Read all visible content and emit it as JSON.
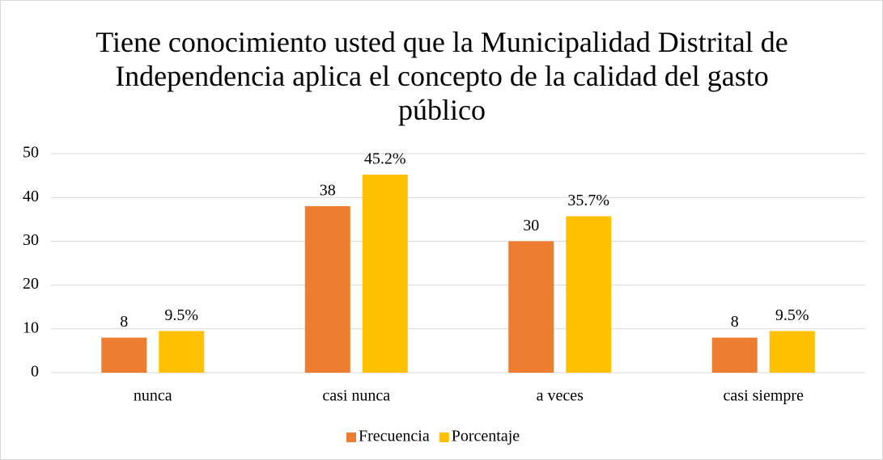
{
  "chart_data": {
    "type": "bar",
    "title": "Tiene conocimiento usted que la Municipalidad Distrital de Independencia aplica el concepto de la calidad del gasto público",
    "categories": [
      "nunca",
      "casi nunca",
      "a veces",
      "casi siempre"
    ],
    "series": [
      {
        "name": "Frecuencia",
        "color": "#ed7d31",
        "values": [
          8,
          38,
          30,
          8
        ]
      },
      {
        "name": "Porcentaje",
        "color": "#ffc000",
        "values": [
          9.5,
          45.2,
          35.7,
          9.5
        ],
        "value_labels": [
          "9.5%",
          "45.2%",
          "35.7%",
          "9.5%"
        ]
      }
    ],
    "ylim": [
      0,
      50
    ],
    "yticks": [
      0,
      10,
      20,
      30,
      40,
      50
    ],
    "grid": true,
    "legend": "bottom"
  }
}
